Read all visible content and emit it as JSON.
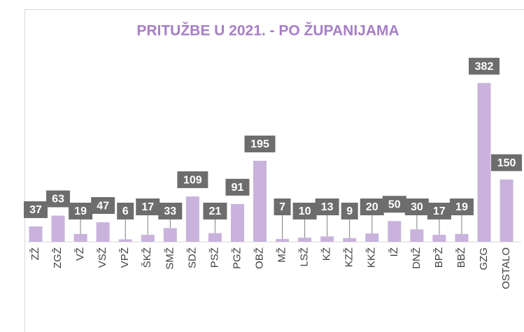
{
  "chart_data": {
    "type": "bar",
    "title": "PRITUŽBE U 2021. - PO ŽUPANIJAMA",
    "categories": [
      "ZŽ",
      "ZGŽ",
      "VŽ",
      "VSŽ",
      "VPŽ",
      "ŠKŽ",
      "SMŽ",
      "SDŽ",
      "PSŽ",
      "PGŽ",
      "OBŽ",
      "MŽ",
      "LSŽ",
      "KŽ",
      "KZŽ",
      "KKŽ",
      "IŽ",
      "DNŽ",
      "BPŽ",
      "BBŽ",
      "GZG",
      "OSTALO"
    ],
    "values": [
      37,
      63,
      19,
      47,
      6,
      17,
      33,
      109,
      21,
      91,
      195,
      7,
      10,
      13,
      9,
      20,
      50,
      30,
      17,
      19,
      382,
      150
    ],
    "color": "#c9b3dd",
    "label_color": "#6d6d6d",
    "ylim": [
      0,
      400
    ]
  }
}
